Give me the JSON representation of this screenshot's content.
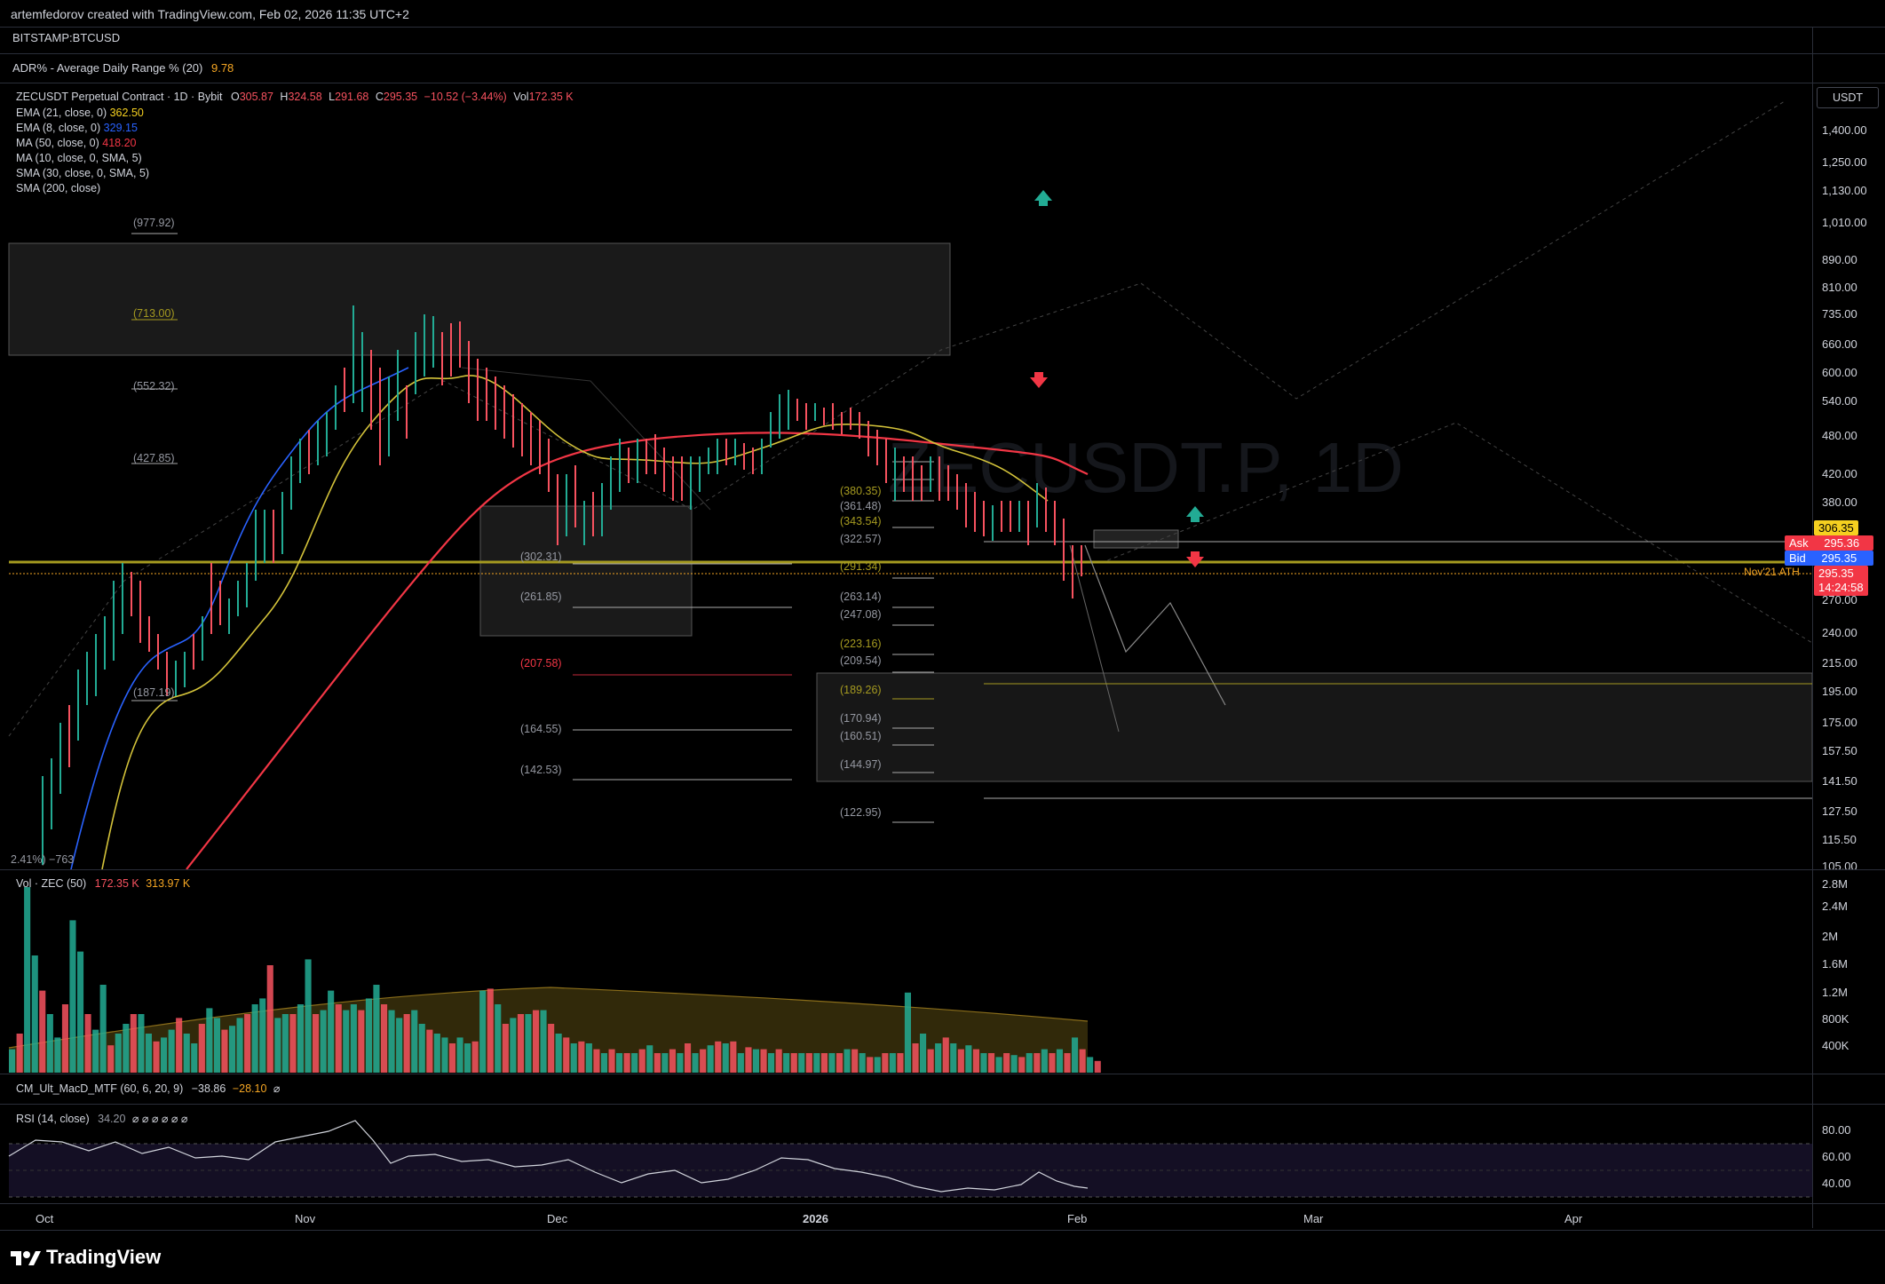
{
  "header": {
    "credit": "artemfedorov created with TradingView.com, Feb 02, 2026 11:35 UTC+2",
    "symbol": "BITSTAMP:BTCUSD",
    "adr_label": "ADR% - Average Daily Range % (20)",
    "adr_value": "9.78"
  },
  "legend": {
    "title": "ZECUSDT Perpetual Contract · 1D · Bybit",
    "o_label": "O",
    "o": "305.87",
    "h_label": "H",
    "h": "324.58",
    "l_label": "L",
    "l": "291.68",
    "c_label": "C",
    "c": "295.35",
    "change": "−10.52 (−3.44%)",
    "vol_label": "Vol",
    "vol": "172.35 K",
    "indicators": [
      {
        "label": "EMA (21, close, 0)",
        "value": "362.50",
        "color": "#f5d020"
      },
      {
        "label": "EMA (8, close, 0)",
        "value": "329.15",
        "color": "#2962ff"
      },
      {
        "label": "MA (50, close, 0)",
        "value": "418.20",
        "color": "#f23645"
      },
      {
        "label": "MA (10, close, 0, SMA, 5)",
        "value": "",
        "color": ""
      },
      {
        "label": "SMA (30, close, 0, SMA, 5)",
        "value": "",
        "color": ""
      },
      {
        "label": "SMA (200, close)",
        "value": "",
        "color": ""
      }
    ]
  },
  "watermark": "ZECUSDT.P, 1D",
  "price_axis": {
    "currency": "USDT",
    "labels": [
      "1,400.00",
      "1,250.00",
      "1,130.00",
      "1,010.00",
      "890.00",
      "810.00",
      "735.00",
      "660.00",
      "600.00",
      "540.00",
      "480.00",
      "420.00",
      "380.00",
      "270.00",
      "240.00",
      "215.00",
      "195.00",
      "175.00",
      "157.50",
      "141.50",
      "127.50",
      "115.50",
      "105.00"
    ],
    "badge_price": "306.35",
    "ask_label": "Ask",
    "ask": "295.36",
    "bid_label": "Bid",
    "bid": "295.35",
    "last": "295.35",
    "countdown": "14:24:58",
    "ath_label": "Nov'21 ATH"
  },
  "fib_levels": {
    "left": [
      "(977.92)",
      "(713.00)",
      "(552.32)",
      "(427.85)",
      "(187.19)"
    ],
    "middle": [
      "(302.31)",
      "(261.85)",
      "(207.58)",
      "(164.55)",
      "(142.53)"
    ],
    "right": [
      "(380.35)",
      "(361.48)",
      "(343.54)",
      "(322.57)",
      "(291.34)",
      "(263.14)",
      "(247.08)",
      "(223.16)",
      "(209.54)",
      "(189.26)",
      "(170.94)",
      "(160.51)",
      "(144.97)",
      "(122.95)"
    ]
  },
  "bottom_left_stat": "2.41%) −763",
  "volume": {
    "label": "Vol · ZEC (50)",
    "v1": "172.35 K",
    "v2": "313.97 K",
    "axis": [
      "2.8M",
      "2.4M",
      "2M",
      "1.6M",
      "1.2M",
      "800K",
      "400K"
    ],
    "bars": [
      0.12,
      0.2,
      0.95,
      0.6,
      0.42,
      0.3,
      0.18,
      0.35,
      0.78,
      0.62,
      0.3,
      0.22,
      0.45,
      0.14,
      0.2,
      0.25,
      0.3,
      0.3,
      0.2,
      0.16,
      0.18,
      0.22,
      0.28,
      0.2,
      0.15,
      0.25,
      0.33,
      0.28,
      0.22,
      0.24,
      0.28,
      0.3,
      0.35,
      0.38,
      0.55,
      0.28,
      0.3,
      0.3,
      0.35,
      0.58,
      0.3,
      0.32,
      0.42,
      0.35,
      0.32,
      0.35,
      0.32,
      0.38,
      0.45,
      0.35,
      0.32,
      0.28,
      0.3,
      0.32,
      0.25,
      0.22,
      0.2,
      0.18,
      0.15,
      0.18,
      0.15,
      0.16,
      0.42,
      0.43,
      0.35,
      0.25,
      0.28,
      0.3,
      0.3,
      0.32,
      0.32,
      0.25,
      0.2,
      0.18,
      0.15,
      0.16,
      0.15,
      0.12,
      0.1,
      0.12,
      0.1,
      0.1,
      0.1,
      0.12,
      0.14,
      0.1,
      0.1,
      0.12,
      0.1,
      0.15,
      0.1,
      0.12,
      0.14,
      0.16,
      0.15,
      0.16,
      0.1,
      0.13,
      0.12,
      0.12,
      0.1,
      0.12,
      0.1,
      0.1,
      0.1,
      0.1,
      0.1,
      0.1,
      0.1,
      0.1,
      0.12,
      0.12,
      0.1,
      0.08,
      0.08,
      0.1,
      0.1,
      0.1,
      0.41,
      0.15,
      0.2,
      0.12,
      0.15,
      0.18,
      0.15,
      0.12,
      0.14,
      0.12,
      0.1,
      0.1,
      0.08,
      0.1,
      0.09,
      0.08,
      0.1,
      0.1,
      0.12,
      0.1,
      0.12,
      0.1,
      0.18,
      0.12,
      0.08,
      0.06
    ],
    "up_color": "#22ab94",
    "down_color": "#f7525f"
  },
  "macd": {
    "label": "CM_Ult_MacD_MTF (60, 6, 20, 9)",
    "v1": "−38.86",
    "v2": "−28.10",
    "na": "⌀"
  },
  "rsi": {
    "label": "RSI (14, close)",
    "value": "34.20",
    "na": "⌀ ⌀ ⌀ ⌀ ⌀ ⌀",
    "axis": [
      "80.00",
      "60.00",
      "40.00"
    ]
  },
  "time_axis": [
    "Oct",
    "Nov",
    "Dec",
    "2026",
    "Feb",
    "Mar",
    "Apr"
  ],
  "brand": "TradingView",
  "colors": {
    "up": "#22ab94",
    "down": "#f7525f",
    "ema21": "#f5d020",
    "ema8": "#2962ff",
    "ma50": "#f23645",
    "ask": "#f23645",
    "bid": "#2962ff",
    "badge": "#f5d020"
  }
}
